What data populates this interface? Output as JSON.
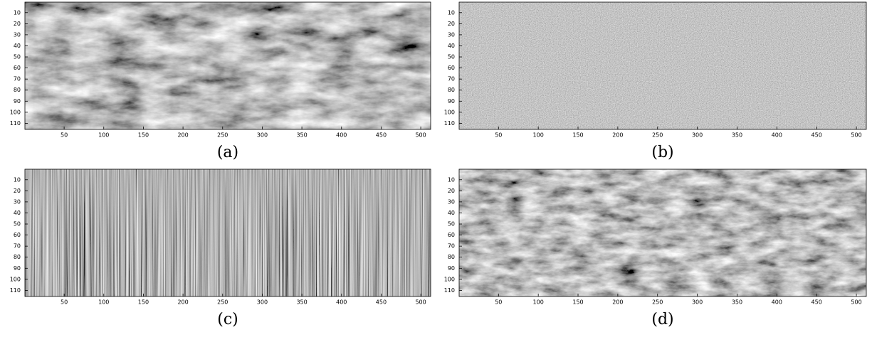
{
  "panels": [
    {
      "caption": "(a)",
      "xlim": [
        0.5,
        512.5
      ],
      "ylim": [
        0.5,
        115.5
      ],
      "xticks": [
        50,
        100,
        150,
        200,
        250,
        300,
        350,
        400,
        450,
        500
      ],
      "yticks": [
        10,
        20,
        30,
        40,
        50,
        60,
        70,
        80,
        90,
        100,
        110
      ]
    },
    {
      "caption": "(b)",
      "xlim": [
        0.5,
        512.5
      ],
      "ylim": [
        0.5,
        115.5
      ],
      "xticks": [
        50,
        100,
        150,
        200,
        250,
        300,
        350,
        400,
        450,
        500
      ],
      "yticks": [
        10,
        20,
        30,
        40,
        50,
        60,
        70,
        80,
        90,
        100,
        110
      ]
    },
    {
      "caption": "(c)",
      "xlim": [
        0.5,
        512.5
      ],
      "ylim": [
        0.5,
        115.5
      ],
      "xticks": [
        50,
        100,
        150,
        200,
        250,
        300,
        350,
        400,
        450,
        500
      ],
      "yticks": [
        10,
        20,
        30,
        40,
        50,
        60,
        70,
        80,
        90,
        100,
        110
      ]
    },
    {
      "caption": "(d)",
      "xlim": [
        0.5,
        512.5
      ],
      "ylim": [
        0.5,
        115.5
      ],
      "xticks": [
        50,
        100,
        150,
        200,
        250,
        300,
        350,
        400,
        450,
        500
      ],
      "yticks": [
        10,
        20,
        30,
        40,
        50,
        60,
        70,
        80,
        90,
        100,
        110
      ]
    }
  ]
}
